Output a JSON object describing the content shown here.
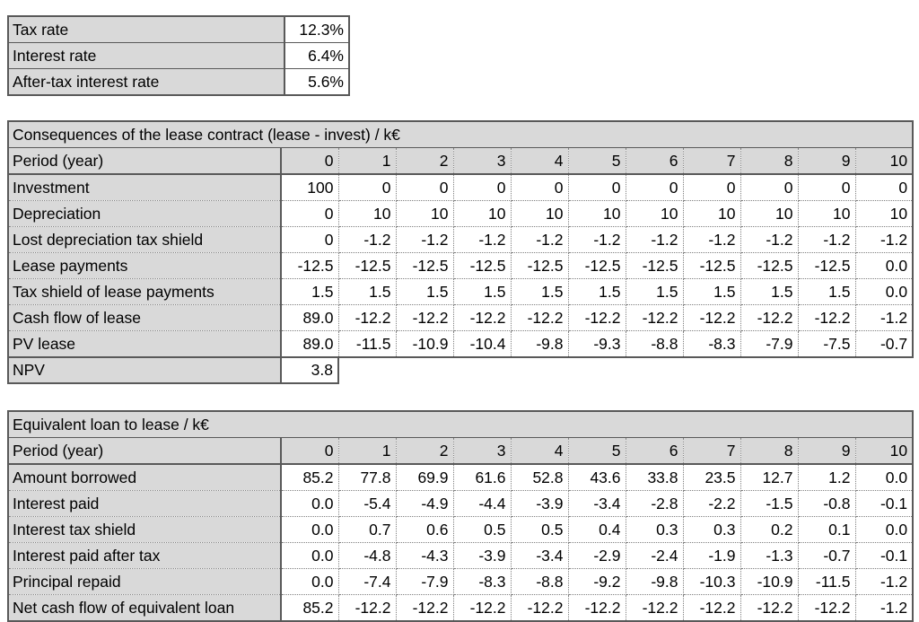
{
  "colors": {
    "cell_fill_gray": "#d9d9d9",
    "border_dark": "#595959",
    "border_dotted": "#808080",
    "text": "#000000",
    "background": "#ffffff"
  },
  "params_table": {
    "rows": [
      {
        "label": "Tax rate",
        "value": "12.3%"
      },
      {
        "label": "Interest rate",
        "value": "6.4%"
      },
      {
        "label": "After-tax interest rate",
        "value": "5.6%"
      }
    ]
  },
  "lease_table": {
    "title": "Consequences of the lease contract (lease - invest) / k€",
    "period_label": "Period (year)",
    "periods": [
      "0",
      "1",
      "2",
      "3",
      "4",
      "5",
      "6",
      "7",
      "8",
      "9",
      "10"
    ],
    "rows": [
      {
        "label": "Investment",
        "values": [
          "100",
          "0",
          "0",
          "0",
          "0",
          "0",
          "0",
          "0",
          "0",
          "0",
          "0"
        ]
      },
      {
        "label": "Depreciation",
        "values": [
          "0",
          "10",
          "10",
          "10",
          "10",
          "10",
          "10",
          "10",
          "10",
          "10",
          "10"
        ]
      },
      {
        "label": "Lost depreciation tax shield",
        "values": [
          "0",
          "-1.2",
          "-1.2",
          "-1.2",
          "-1.2",
          "-1.2",
          "-1.2",
          "-1.2",
          "-1.2",
          "-1.2",
          "-1.2"
        ]
      },
      {
        "label": "Lease payments",
        "values": [
          "-12.5",
          "-12.5",
          "-12.5",
          "-12.5",
          "-12.5",
          "-12.5",
          "-12.5",
          "-12.5",
          "-12.5",
          "-12.5",
          "0.0"
        ]
      },
      {
        "label": "Tax shield of lease payments",
        "values": [
          "1.5",
          "1.5",
          "1.5",
          "1.5",
          "1.5",
          "1.5",
          "1.5",
          "1.5",
          "1.5",
          "1.5",
          "0.0"
        ]
      },
      {
        "label": "Cash flow of lease",
        "values": [
          "89.0",
          "-12.2",
          "-12.2",
          "-12.2",
          "-12.2",
          "-12.2",
          "-12.2",
          "-12.2",
          "-12.2",
          "-12.2",
          "-1.2"
        ]
      },
      {
        "label": "PV lease",
        "values": [
          "89.0",
          "-11.5",
          "-10.9",
          "-10.4",
          "-9.8",
          "-9.3",
          "-8.8",
          "-8.3",
          "-7.9",
          "-7.5",
          "-0.7"
        ]
      }
    ],
    "npv": {
      "label": "NPV",
      "value": "3.8"
    }
  },
  "loan_table": {
    "title": "Equivalent loan to lease / k€",
    "period_label": "Period (year)",
    "periods": [
      "0",
      "1",
      "2",
      "3",
      "4",
      "5",
      "6",
      "7",
      "8",
      "9",
      "10"
    ],
    "rows": [
      {
        "label": "Amount borrowed",
        "values": [
          "85.2",
          "77.8",
          "69.9",
          "61.6",
          "52.8",
          "43.6",
          "33.8",
          "23.5",
          "12.7",
          "1.2",
          "0.0"
        ]
      },
      {
        "label": "Interest paid",
        "values": [
          "0.0",
          "-5.4",
          "-4.9",
          "-4.4",
          "-3.9",
          "-3.4",
          "-2.8",
          "-2.2",
          "-1.5",
          "-0.8",
          "-0.1"
        ]
      },
      {
        "label": "Interest tax shield",
        "values": [
          "0.0",
          "0.7",
          "0.6",
          "0.5",
          "0.5",
          "0.4",
          "0.3",
          "0.3",
          "0.2",
          "0.1",
          "0.0"
        ]
      },
      {
        "label": "Interest paid after tax",
        "values": [
          "0.0",
          "-4.8",
          "-4.3",
          "-3.9",
          "-3.4",
          "-2.9",
          "-2.4",
          "-1.9",
          "-1.3",
          "-0.7",
          "-0.1"
        ]
      },
      {
        "label": "Principal repaid",
        "values": [
          "0.0",
          "-7.4",
          "-7.9",
          "-8.3",
          "-8.8",
          "-9.2",
          "-9.8",
          "-10.3",
          "-10.9",
          "-11.5",
          "-1.2"
        ]
      },
      {
        "label": "Net cash flow of equivalent loan",
        "values": [
          "85.2",
          "-12.2",
          "-12.2",
          "-12.2",
          "-12.2",
          "-12.2",
          "-12.2",
          "-12.2",
          "-12.2",
          "-12.2",
          "-1.2"
        ]
      }
    ]
  }
}
